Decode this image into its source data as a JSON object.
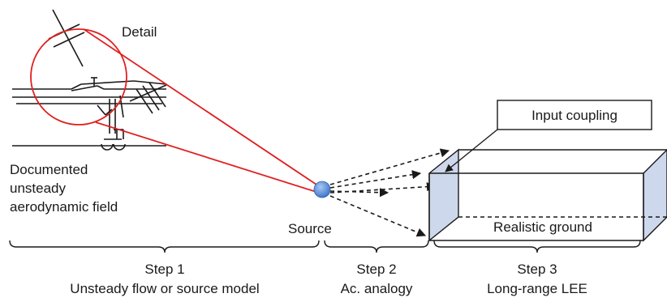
{
  "labels": {
    "detail": "Detail",
    "documented_line1": "Documented",
    "documented_line2": "unsteady",
    "documented_line3": "aerodynamic field",
    "source": "Source",
    "input_coupling": "Input coupling",
    "realistic_ground": "Realistic ground"
  },
  "steps": [
    {
      "title": "Step 1",
      "subtitle": "Unsteady flow or source model"
    },
    {
      "title": "Step 2",
      "subtitle": "Ac. analogy"
    },
    {
      "title": "Step 3",
      "subtitle": "Long-range LEE"
    }
  ],
  "colors": {
    "highlight": "#e02020",
    "source_fill": "#4a86d8",
    "box_face": "#cdd8ec",
    "ink": "#1a1a1a"
  }
}
